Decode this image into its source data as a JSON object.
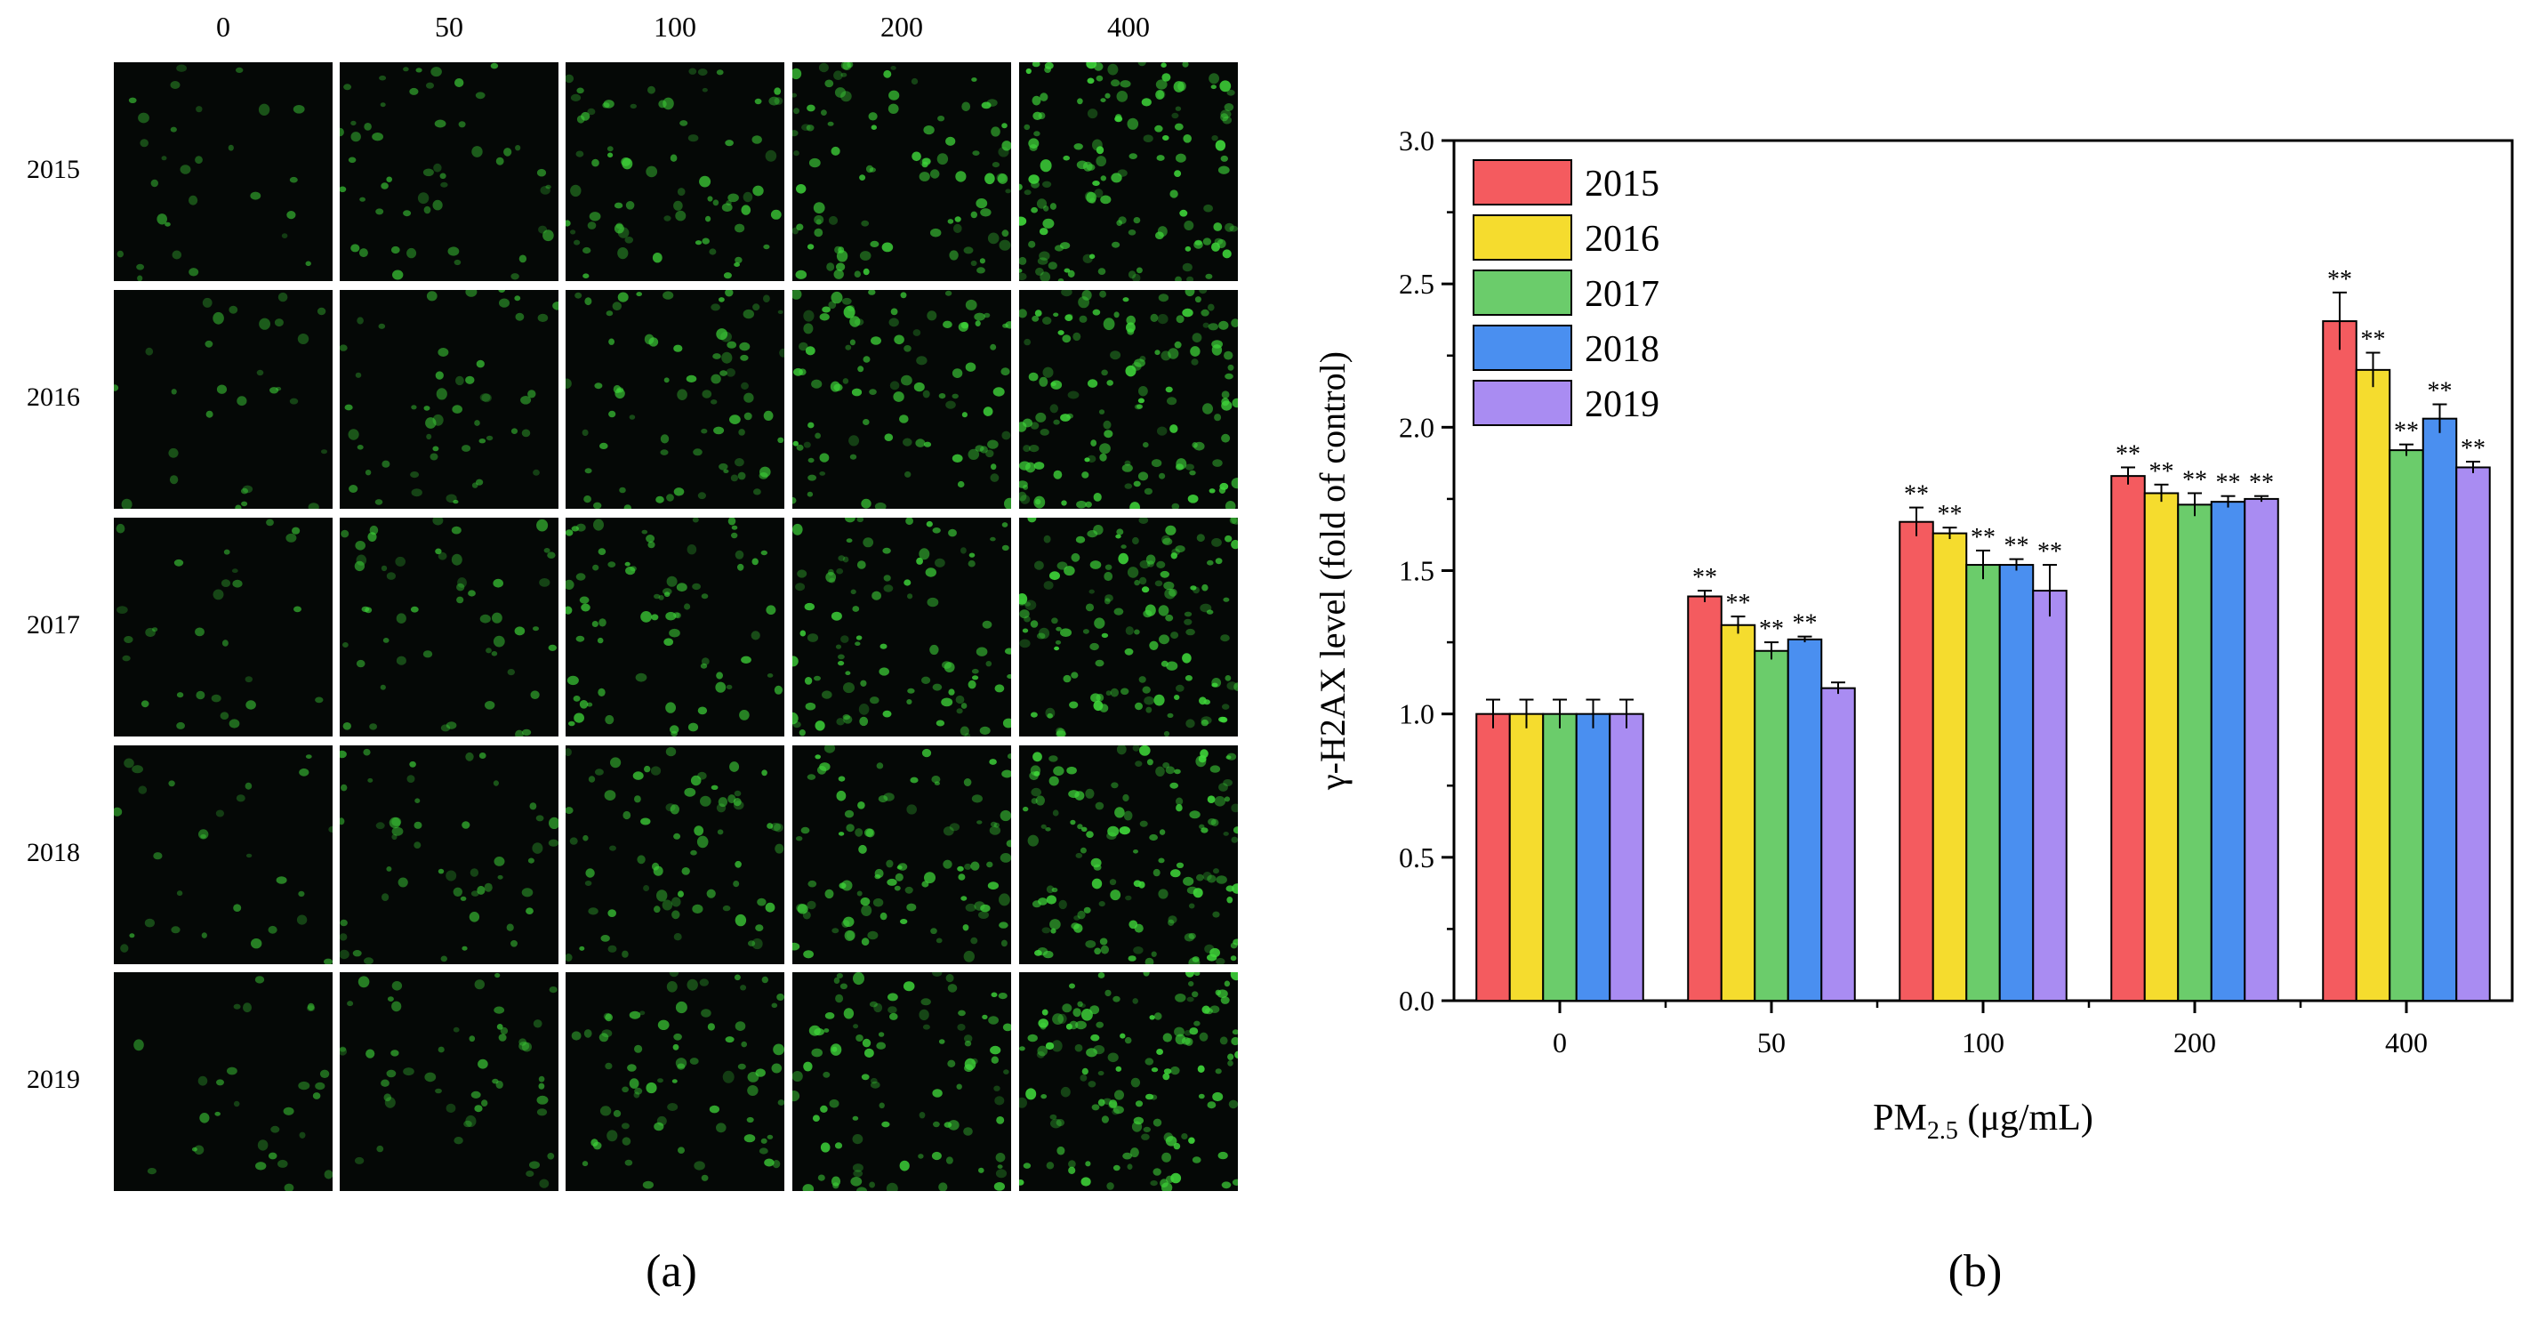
{
  "panel_a": {
    "caption": "(a)",
    "column_labels": [
      "0",
      "50",
      "100",
      "200",
      "400"
    ],
    "row_labels": [
      "2015",
      "2016",
      "2017",
      "2018",
      "2019"
    ],
    "fluorescence_color": "#3fd63a",
    "background_color": "#050806"
  },
  "panel_b": {
    "caption": "(b)"
  },
  "chart_data": {
    "type": "bar",
    "title": "",
    "xlabel": "PM",
    "xlabel_sub": "2.5",
    "xlabel_unit": " (μg/mL)",
    "ylabel": "γ-H2AX level (fold of control)",
    "ylim": [
      0,
      3.0
    ],
    "yticks": [
      "0.0",
      "0.5",
      "1.0",
      "1.5",
      "2.0",
      "2.5",
      "3.0"
    ],
    "categories": [
      "0",
      "50",
      "100",
      "200",
      "400"
    ],
    "legend_position": "top-left",
    "significance_mark": "**",
    "series": [
      {
        "name": "2015",
        "color": "#f45b5f",
        "values": [
          1.0,
          1.41,
          1.67,
          1.83,
          2.37
        ],
        "errors": [
          0.05,
          0.02,
          0.05,
          0.03,
          0.1
        ],
        "significant": [
          false,
          true,
          true,
          true,
          true
        ]
      },
      {
        "name": "2016",
        "color": "#f5dc2e",
        "values": [
          1.0,
          1.31,
          1.63,
          1.77,
          2.2
        ],
        "errors": [
          0.05,
          0.03,
          0.02,
          0.03,
          0.06
        ],
        "significant": [
          false,
          true,
          true,
          true,
          true
        ]
      },
      {
        "name": "2017",
        "color": "#6bcc6b",
        "values": [
          1.0,
          1.22,
          1.52,
          1.73,
          1.92
        ],
        "errors": [
          0.05,
          0.03,
          0.05,
          0.04,
          0.02
        ],
        "significant": [
          false,
          true,
          true,
          true,
          true
        ]
      },
      {
        "name": "2018",
        "color": "#4a8ff0",
        "values": [
          1.0,
          1.26,
          1.52,
          1.74,
          2.03
        ],
        "errors": [
          0.05,
          0.01,
          0.02,
          0.02,
          0.05
        ],
        "significant": [
          false,
          true,
          true,
          true,
          true
        ]
      },
      {
        "name": "2019",
        "color": "#a98cf2",
        "values": [
          1.0,
          1.09,
          1.43,
          1.75,
          1.86
        ],
        "errors": [
          0.05,
          0.02,
          0.09,
          0.01,
          0.02
        ],
        "significant": [
          false,
          false,
          true,
          true,
          true
        ]
      }
    ]
  }
}
